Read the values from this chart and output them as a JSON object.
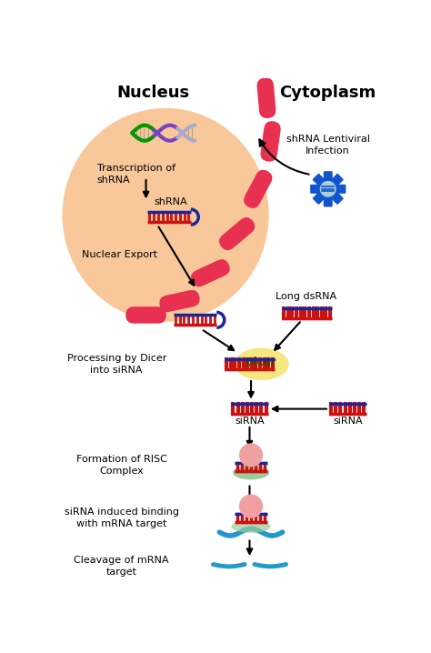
{
  "bg_color": "#ffffff",
  "nucleus_fill_center": "#f8c89a",
  "nucleus_fill_edge": "#fde8d0",
  "cell_membrane_color": "#e83050",
  "title_nucleus": "Nucleus",
  "title_cytoplasm": "Cytoplasm",
  "label_transcription": "Transcription of\nshRNA",
  "label_shrna": "shRNA",
  "label_nuclear_export": "Nuclear Export",
  "label_lentiviral": "shRNA Lentiviral\nInfection",
  "label_long_dsrna": "Long dsRNA",
  "label_dicer": "Dicer",
  "label_processing": "Processing by Dicer\ninto siRNA",
  "label_sirna": "siRNA",
  "label_risc": "Formation of RISC\nComplex",
  "label_binding": "siRNA induced binding\nwith mRNA target",
  "label_cleavage": "Cleavage of mRNA\ntarget",
  "dna_blue": "#1a2699",
  "dna_red": "#cc1111",
  "dna_green": "#009900",
  "dna_purple": "#7744bb",
  "dna_grey": "#aaaacc",
  "virus_blue": "#1155cc",
  "virus_center": "#aaccdd",
  "dicer_color": "#f5e880",
  "risc_pink": "#f0a0a0",
  "risc_green": "#99cc99",
  "mrna_cyan": "#2299cc",
  "arrow_color": "#111111"
}
